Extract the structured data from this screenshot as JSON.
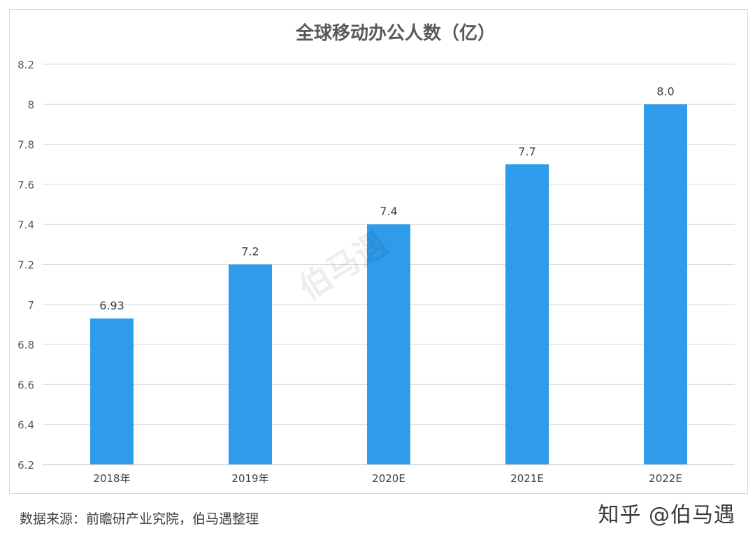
{
  "chart_data": {
    "type": "bar",
    "title": "全球移动办公人数（亿）",
    "categories": [
      "2018年",
      "2019年",
      "2020E",
      "2021E",
      "2022E"
    ],
    "values": [
      6.93,
      7.2,
      7.4,
      7.7,
      8.0
    ],
    "data_labels": [
      "6.93",
      "7.2",
      "7.4",
      "7.7",
      "8.0"
    ],
    "ylim": [
      6.2,
      8.2
    ],
    "yticks": [
      6.2,
      6.4,
      6.6,
      6.8,
      7,
      7.2,
      7.4,
      7.6,
      7.8,
      8,
      8.2
    ],
    "ytick_labels": [
      "6.2",
      "6.4",
      "6.6",
      "6.8",
      "7",
      "7.2",
      "7.4",
      "7.6",
      "7.8",
      "8",
      "8.2"
    ],
    "xlabel": "",
    "ylabel": "",
    "grid": true,
    "legend": "none",
    "bar_color": "#2f9beb",
    "grid_color": "#d9d9d9"
  },
  "source_text": "数据来源：前瞻研产业究院，伯马遇整理",
  "brand_text": "知乎 @伯马遇",
  "watermark_text": "伯马遇"
}
